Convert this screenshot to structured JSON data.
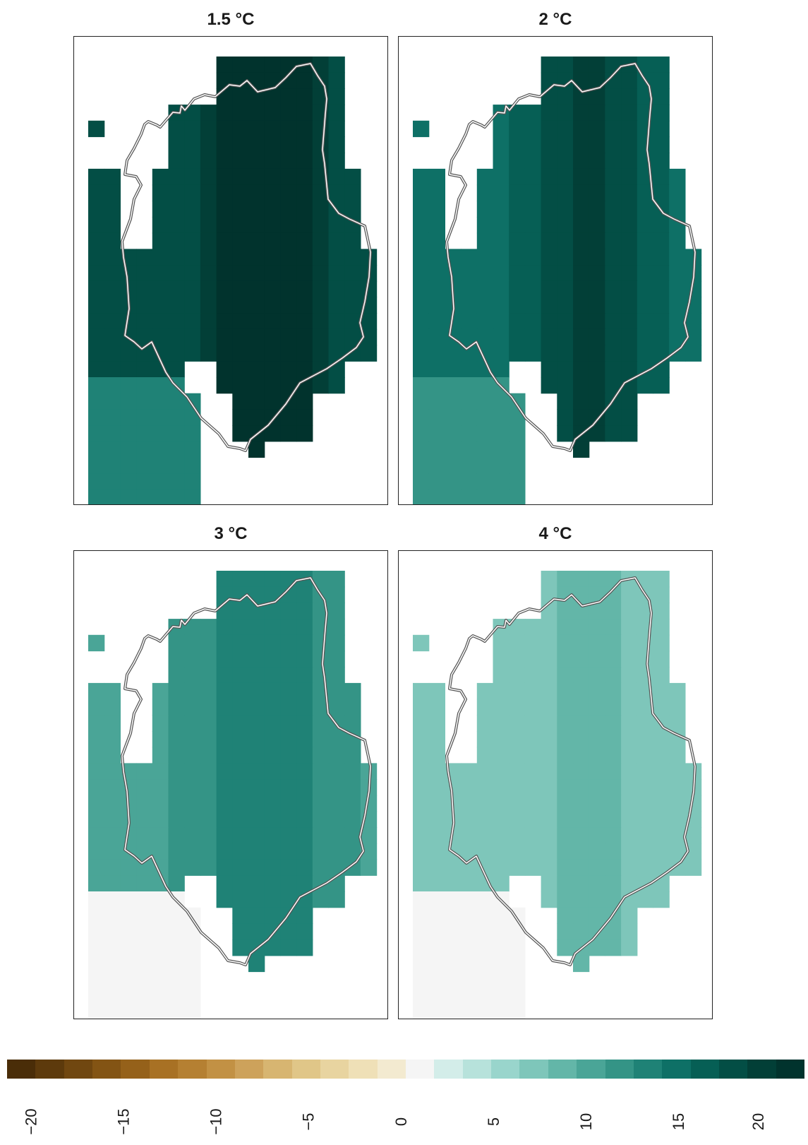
{
  "panels": [
    {
      "title": "1.5 °C",
      "level": 20
    },
    {
      "title": "2 °C",
      "level": 17
    },
    {
      "title": "3 °C",
      "level": 12
    },
    {
      "title": "4 °C",
      "level": 7
    }
  ],
  "colorbar": {
    "min": -20,
    "max": 20,
    "tick_labels": [
      "−20",
      "−15",
      "−10",
      "−5",
      "0",
      "5",
      "10",
      "15",
      "20"
    ],
    "colors": [
      "#4a2d08",
      "#5d3a0c",
      "#704710",
      "#835414",
      "#95611a",
      "#a87124",
      "#b58032",
      "#c29144",
      "#cda25b",
      "#d7b571",
      "#e0c688",
      "#e8d4a0",
      "#efe0b7",
      "#f3ead0",
      "#f5f5f5",
      "#d3ede9",
      "#b7e2db",
      "#99d5cc",
      "#7ec6ba",
      "#63b6a8",
      "#4aa597",
      "#349486",
      "#1f8276",
      "#0e7066",
      "#065f55",
      "#034e45",
      "#023f37",
      "#01332d"
    ]
  }
}
